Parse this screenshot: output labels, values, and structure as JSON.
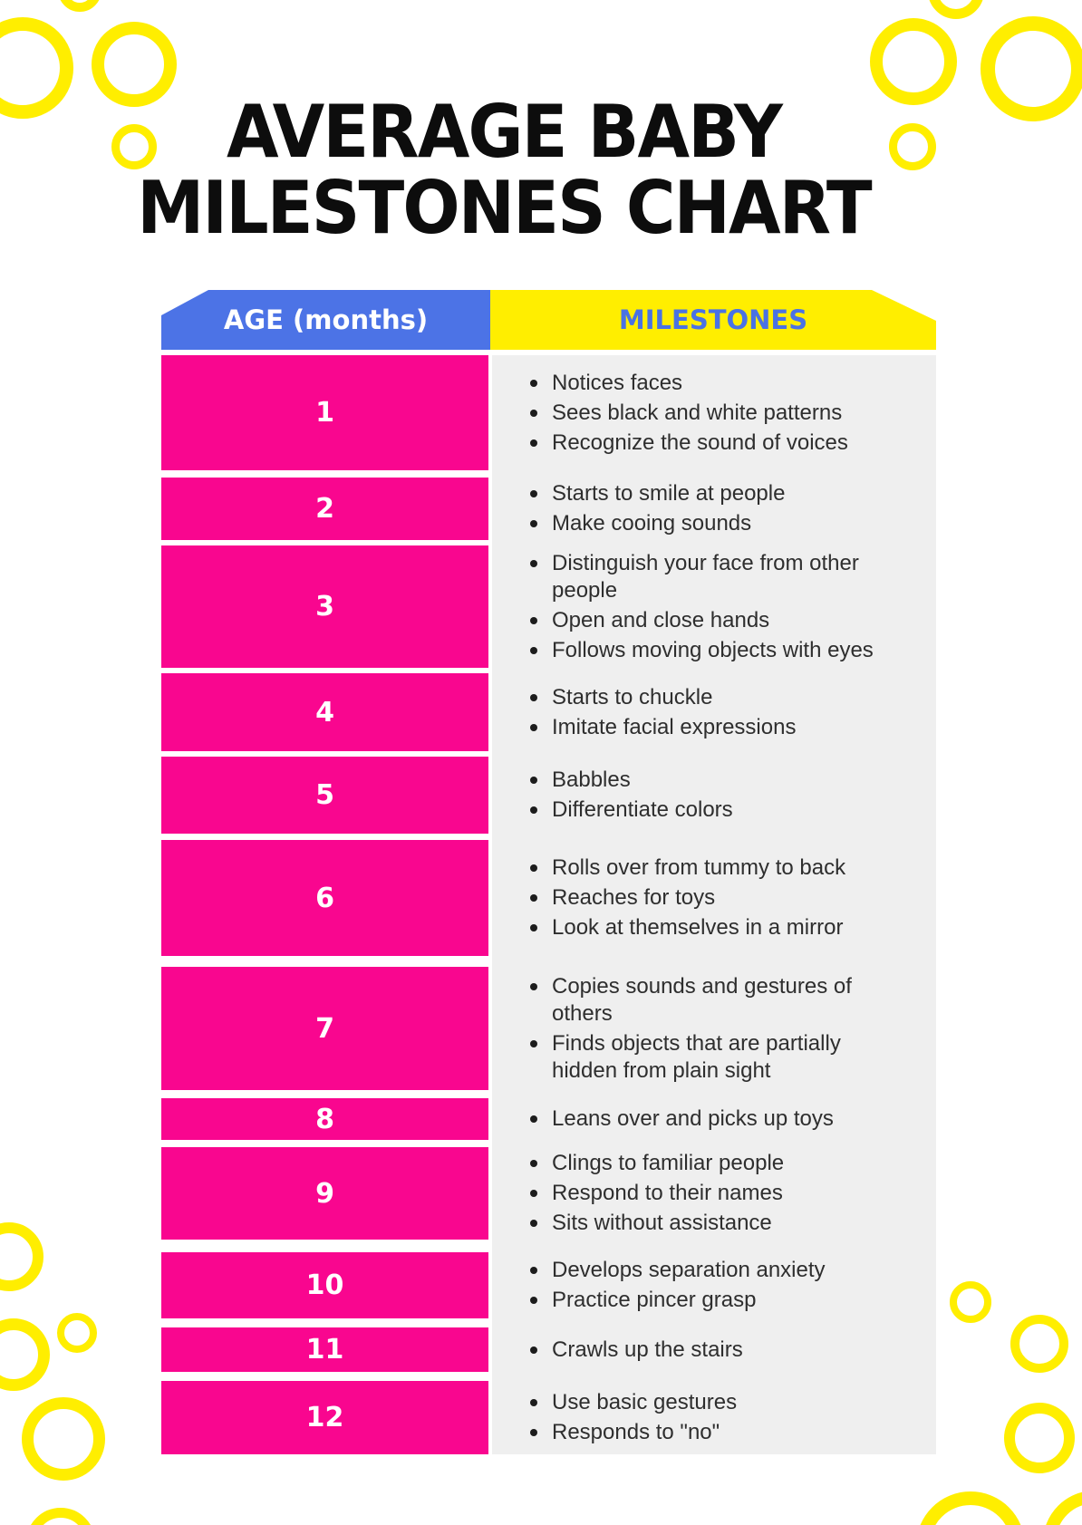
{
  "title": {
    "line1": "AVERAGE BABY",
    "line2": "MILESTONES CHART"
  },
  "colors": {
    "pink": "#f9068f",
    "blue": "#4c73e6",
    "header_label_blue": "#4a72e4",
    "yellow": "#ffee00",
    "panel_gray": "#efefef",
    "bullet_text": "#2e2e2e",
    "title_black": "#0d0d0d",
    "ring_yellow": "#ffee00"
  },
  "chart_data": {
    "type": "table",
    "title": "AVERAGE BABY MILESTONES CHART",
    "columns": [
      "AGE (months)",
      "MILESTONES"
    ],
    "rows": [
      {
        "age": "1",
        "milestones": [
          "Notices faces",
          "Sees black and white patterns",
          "Recognize the sound of voices"
        ]
      },
      {
        "age": "2",
        "milestones": [
          "Starts to smile at people",
          "Make cooing sounds"
        ]
      },
      {
        "age": "3",
        "milestones": [
          "Distinguish your face from other people",
          "Open and close hands",
          "Follows moving objects with eyes"
        ]
      },
      {
        "age": "4",
        "milestones": [
          "Starts to chuckle",
          "Imitate facial expressions"
        ]
      },
      {
        "age": "5",
        "milestones": [
          "Babbles",
          "Differentiate colors"
        ]
      },
      {
        "age": "6",
        "milestones": [
          "Rolls over from tummy to back",
          "Reaches for toys",
          "Look at themselves in a mirror"
        ]
      },
      {
        "age": "7",
        "milestones": [
          "Copies sounds and gestures of others",
          "Finds objects that are partially hidden from plain sight"
        ]
      },
      {
        "age": "8",
        "milestones": [
          "Leans over and picks up toys"
        ]
      },
      {
        "age": "9",
        "milestones": [
          "Clings to familiar people",
          "Respond to their names",
          "Sits without assistance"
        ]
      },
      {
        "age": "10",
        "milestones": [
          "Develops separation anxiety",
          "Practice pincer grasp"
        ]
      },
      {
        "age": "11",
        "milestones": [
          "Crawls up the stairs"
        ]
      },
      {
        "age": "12",
        "milestones": [
          "Use basic gestures",
          "Responds to \"no\""
        ]
      }
    ]
  }
}
